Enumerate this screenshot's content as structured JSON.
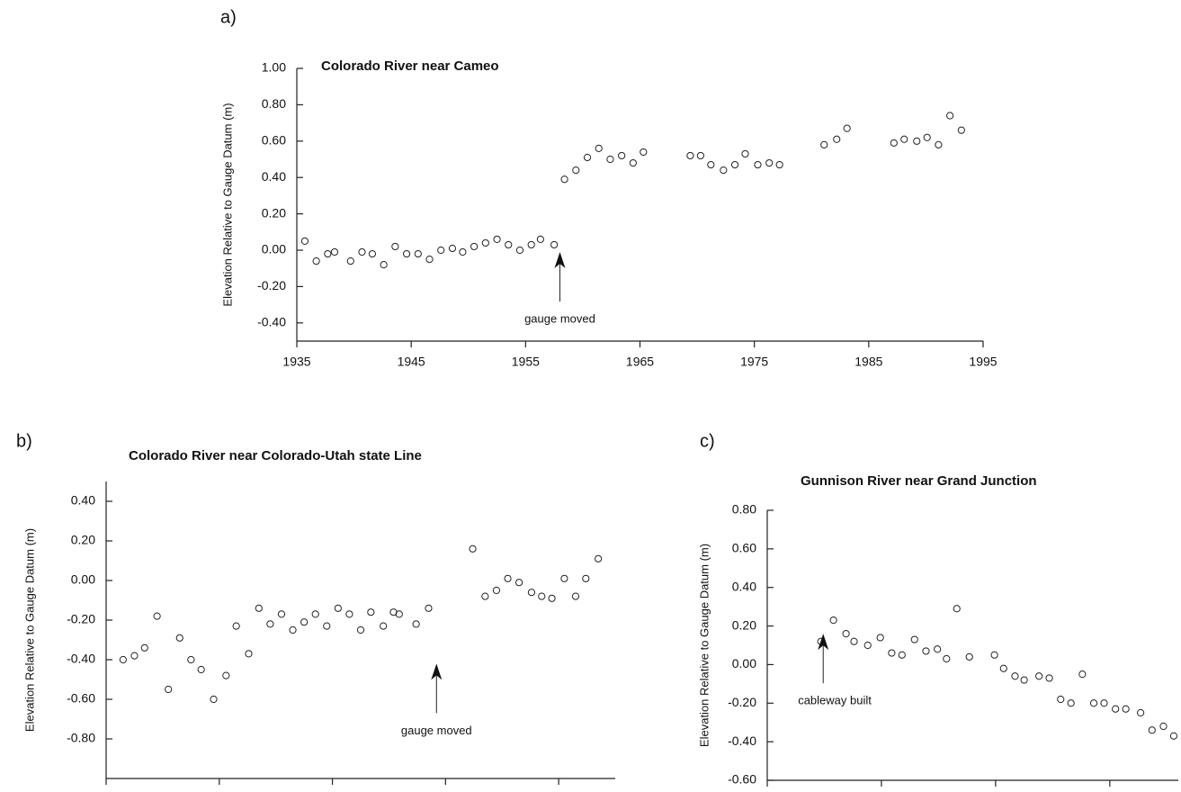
{
  "chart_data": [
    {
      "type": "scatter",
      "label": "a)",
      "title": "Colorado River near Cameo",
      "ylabel": "Elevation Relative to Gauge Datum (m)",
      "x": [
        1935.7,
        1936.7,
        1937.7,
        1938.3,
        1939.7,
        1940.7,
        1941.6,
        1942.6,
        1943.6,
        1944.6,
        1945.6,
        1946.6,
        1947.6,
        1948.6,
        1949.5,
        1950.5,
        1951.5,
        1952.5,
        1953.5,
        1954.5,
        1955.5,
        1956.3,
        1957.5,
        1958.4,
        1959.4,
        1960.4,
        1961.4,
        1962.4,
        1963.4,
        1964.4,
        1965.3,
        1969.4,
        1970.3,
        1971.2,
        1972.3,
        1973.3,
        1974.2,
        1975.3,
        1976.3,
        1977.2,
        1981.1,
        1982.2,
        1983.1,
        1987.2,
        1988.1,
        1989.2,
        1990.1,
        1991.1,
        1992.1,
        1993.1
      ],
      "values": [
        0.05,
        -0.06,
        -0.02,
        -0.01,
        -0.06,
        -0.01,
        -0.02,
        -0.08,
        0.02,
        -0.02,
        -0.02,
        -0.05,
        0.0,
        0.01,
        -0.01,
        0.02,
        0.04,
        0.06,
        0.03,
        0.0,
        0.03,
        0.06,
        0.03,
        0.39,
        0.44,
        0.51,
        0.56,
        0.5,
        0.52,
        0.48,
        0.54,
        0.52,
        0.52,
        0.47,
        0.44,
        0.47,
        0.53,
        0.47,
        0.48,
        0.47,
        0.58,
        0.61,
        0.67,
        0.59,
        0.61,
        0.6,
        0.62,
        0.58,
        0.74,
        0.66
      ],
      "xlim": [
        1935,
        1995
      ],
      "xticks": [
        1935,
        1945,
        1955,
        1965,
        1975,
        1985,
        1995
      ],
      "ylim": [
        -0.5,
        1.0
      ],
      "yticks": [
        {
          "value": -0.4,
          "label": "-0.40"
        },
        {
          "value": -0.2,
          "label": "-0.20"
        },
        {
          "value": 0,
          "label": "0.00"
        },
        {
          "value": 0.2,
          "label": "0.20"
        },
        {
          "value": 0.4,
          "label": "0.40"
        },
        {
          "value": 0.6,
          "label": "0.60"
        },
        {
          "value": 0.8,
          "label": "0.80"
        },
        {
          "value": 1.0,
          "label": "1.00"
        }
      ],
      "annotation": {
        "text": "gauge moved",
        "x": 1958.0,
        "y": -0.01
      }
    },
    {
      "type": "scatter",
      "label": "b)",
      "title": "Colorado River near Colorado-Utah state Line",
      "ylabel": "Elevation Relative to Gauge Datum (m)",
      "x": [
        1951.5,
        1952.5,
        1953.4,
        1954.5,
        1955.5,
        1956.5,
        1957.5,
        1958.4,
        1959.5,
        1960.6,
        1961.5,
        1962.6,
        1963.5,
        1964.5,
        1965.5,
        1966.5,
        1967.5,
        1968.5,
        1969.5,
        1970.5,
        1971.5,
        1972.5,
        1973.4,
        1974.5,
        1975.4,
        1975.9,
        1977.4,
        1978.5,
        1982.4,
        1983.5,
        1984.5,
        1985.5,
        1986.5,
        1987.6,
        1988.5,
        1989.4,
        1990.5,
        1991.5,
        1992.4,
        1993.5
      ],
      "values": [
        -0.4,
        -0.38,
        -0.34,
        -0.18,
        -0.55,
        -0.29,
        -0.4,
        -0.45,
        -0.6,
        -0.48,
        -0.23,
        -0.37,
        -0.14,
        -0.22,
        -0.17,
        -0.25,
        -0.21,
        -0.17,
        -0.23,
        -0.14,
        -0.17,
        -0.25,
        -0.16,
        -0.23,
        -0.16,
        -0.17,
        -0.22,
        -0.14,
        0.16,
        -0.08,
        -0.05,
        0.01,
        -0.01,
        -0.06,
        -0.08,
        -0.09,
        0.01,
        -0.08,
        0.01,
        0.11
      ],
      "xlim": [
        1950,
        1995
      ],
      "xticks": [
        1950,
        1960,
        1970,
        1980,
        1990
      ],
      "ylim": [
        -1.0,
        0.5
      ],
      "yticks": [
        {
          "value": -0.8,
          "label": "-0.80"
        },
        {
          "value": -0.6,
          "label": "-0.60"
        },
        {
          "value": -0.4,
          "label": "-0.40"
        },
        {
          "value": -0.2,
          "label": "-0.20"
        },
        {
          "value": 0,
          "label": "0.00"
        },
        {
          "value": 0.2,
          "label": "0.20"
        },
        {
          "value": 0.4,
          "label": "0.40"
        }
      ],
      "annotation": {
        "text": "gauge moved",
        "x": 1979.2,
        "y": -0.42
      }
    },
    {
      "type": "scatter",
      "label": "c)",
      "title": "Gunnison River near Grand Junction",
      "ylabel": "Elevation Relative to Gauge Datum (m)",
      "x": [
        1964.7,
        1965.8,
        1966.9,
        1967.6,
        1968.8,
        1969.9,
        1970.9,
        1971.8,
        1972.9,
        1973.9,
        1974.9,
        1975.7,
        1976.6,
        1977.7,
        1979.9,
        1980.7,
        1981.7,
        1982.5,
        1983.8,
        1984.7,
        1985.7,
        1986.6,
        1987.6,
        1988.6,
        1989.5,
        1990.5,
        1991.4,
        1992.7,
        1993.7,
        1994.7,
        1995.6
      ],
      "values": [
        0.12,
        0.23,
        0.16,
        0.12,
        0.1,
        0.14,
        0.06,
        0.05,
        0.13,
        0.07,
        0.08,
        0.03,
        0.29,
        0.04,
        0.05,
        -0.02,
        -0.06,
        -0.08,
        -0.06,
        -0.07,
        -0.18,
        -0.2,
        -0.05,
        -0.2,
        -0.2,
        -0.23,
        -0.23,
        -0.25,
        -0.34,
        -0.32,
        -0.37
      ],
      "xlim": [
        1960,
        1996
      ],
      "xticks": [
        1960,
        1970,
        1980,
        1990
      ],
      "ylim": [
        -0.6,
        0.8
      ],
      "yticks": [
        {
          "value": -0.6,
          "label": "-0.60"
        },
        {
          "value": -0.4,
          "label": "-0.40"
        },
        {
          "value": -0.2,
          "label": "-0.20"
        },
        {
          "value": 0,
          "label": "0.00"
        },
        {
          "value": 0.2,
          "label": "0.20"
        },
        {
          "value": 0.4,
          "label": "0.40"
        },
        {
          "value": 0.6,
          "label": "0.60"
        },
        {
          "value": 0.8,
          "label": "0.80"
        }
      ],
      "annotation": {
        "text": "cableway built",
        "x": 1964.9,
        "y": 0.16
      }
    }
  ]
}
